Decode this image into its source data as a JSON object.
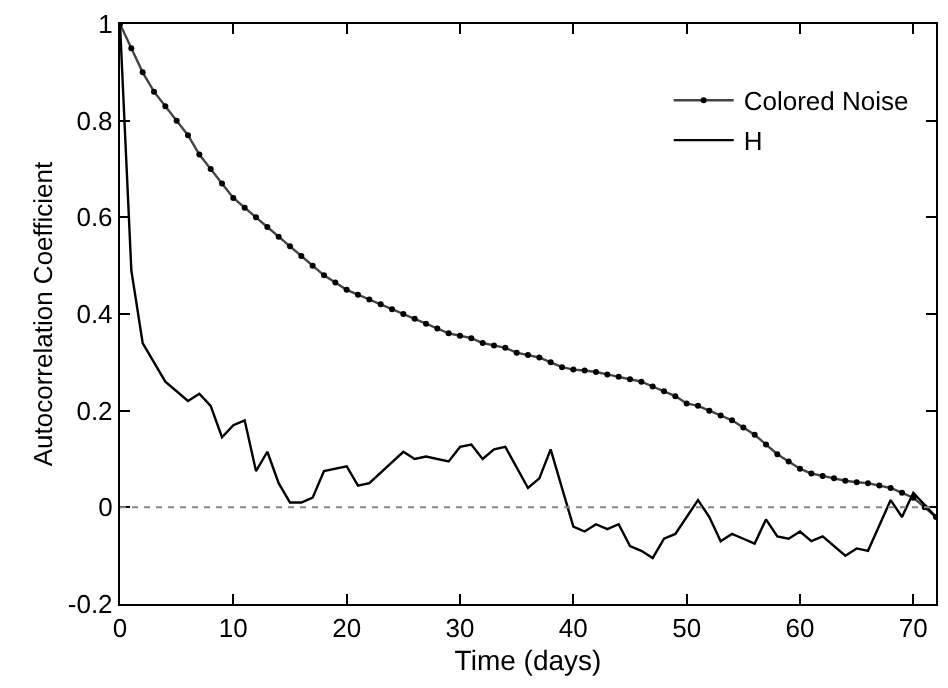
{
  "chart_data": {
    "type": "line",
    "xlabel": "Time (days)",
    "ylabel": "Autocorrelation Coefficient",
    "xlim": [
      0,
      72
    ],
    "ylim": [
      -0.2,
      1
    ],
    "xticks": [
      0,
      10,
      20,
      30,
      40,
      50,
      60,
      70
    ],
    "yticks": [
      -0.2,
      0,
      0.2,
      0.4,
      0.6,
      0.8,
      1
    ],
    "legend": "top right",
    "ref_lines": [
      {
        "axis": "y",
        "value": 0,
        "color": "#888888",
        "line_style": "dotted"
      }
    ],
    "series": [
      {
        "name": "Colored Noise",
        "color": "#444444",
        "marker": "circle",
        "x": [
          0,
          1,
          2,
          3,
          4,
          5,
          6,
          7,
          8,
          9,
          10,
          11,
          12,
          13,
          14,
          15,
          16,
          17,
          18,
          19,
          20,
          21,
          22,
          23,
          24,
          25,
          26,
          27,
          28,
          29,
          30,
          31,
          32,
          33,
          34,
          35,
          36,
          37,
          38,
          39,
          40,
          41,
          42,
          43,
          44,
          45,
          46,
          47,
          48,
          49,
          50,
          51,
          52,
          53,
          54,
          55,
          56,
          57,
          58,
          59,
          60,
          61,
          62,
          63,
          64,
          65,
          66,
          67,
          68,
          69,
          70,
          71,
          72
        ],
        "values": [
          1.0,
          0.95,
          0.9,
          0.86,
          0.83,
          0.8,
          0.77,
          0.73,
          0.7,
          0.67,
          0.64,
          0.62,
          0.6,
          0.58,
          0.56,
          0.54,
          0.52,
          0.5,
          0.48,
          0.465,
          0.45,
          0.44,
          0.43,
          0.42,
          0.41,
          0.4,
          0.39,
          0.38,
          0.37,
          0.36,
          0.355,
          0.35,
          0.34,
          0.335,
          0.33,
          0.32,
          0.315,
          0.31,
          0.3,
          0.29,
          0.285,
          0.283,
          0.28,
          0.275,
          0.27,
          0.265,
          0.26,
          0.25,
          0.24,
          0.23,
          0.215,
          0.21,
          0.2,
          0.19,
          0.18,
          0.165,
          0.15,
          0.13,
          0.11,
          0.095,
          0.08,
          0.07,
          0.065,
          0.06,
          0.055,
          0.052,
          0.05,
          0.045,
          0.04,
          0.03,
          0.02,
          0.0,
          -0.02
        ]
      },
      {
        "name": "H",
        "color": "#000000",
        "marker": "none",
        "x": [
          0,
          1,
          2,
          3,
          4,
          6,
          7,
          8,
          9,
          10,
          11,
          12,
          13,
          14,
          15,
          16,
          17,
          18,
          20,
          21,
          22,
          25,
          26,
          27,
          29,
          30,
          31,
          32,
          33,
          34,
          36,
          37,
          38,
          40,
          41,
          42,
          43,
          44,
          45,
          46,
          47,
          48,
          49,
          51,
          52,
          53,
          54,
          55,
          56,
          57,
          58,
          59,
          60,
          61,
          62,
          64,
          65,
          66,
          68,
          69,
          70,
          72
        ],
        "values": [
          1.0,
          0.49,
          0.34,
          0.3,
          0.26,
          0.22,
          0.235,
          0.21,
          0.145,
          0.17,
          0.18,
          0.075,
          0.115,
          0.05,
          0.01,
          0.01,
          0.02,
          0.075,
          0.085,
          0.045,
          0.05,
          0.115,
          0.1,
          0.105,
          0.095,
          0.125,
          0.13,
          0.1,
          0.12,
          0.125,
          0.04,
          0.06,
          0.12,
          -0.04,
          -0.05,
          -0.035,
          -0.045,
          -0.035,
          -0.08,
          -0.09,
          -0.105,
          -0.065,
          -0.055,
          0.015,
          -0.02,
          -0.07,
          -0.055,
          -0.065,
          -0.075,
          -0.025,
          -0.06,
          -0.065,
          -0.05,
          -0.07,
          -0.06,
          -0.1,
          -0.085,
          -0.09,
          0.015,
          -0.02,
          0.03,
          -0.02
        ]
      }
    ]
  }
}
